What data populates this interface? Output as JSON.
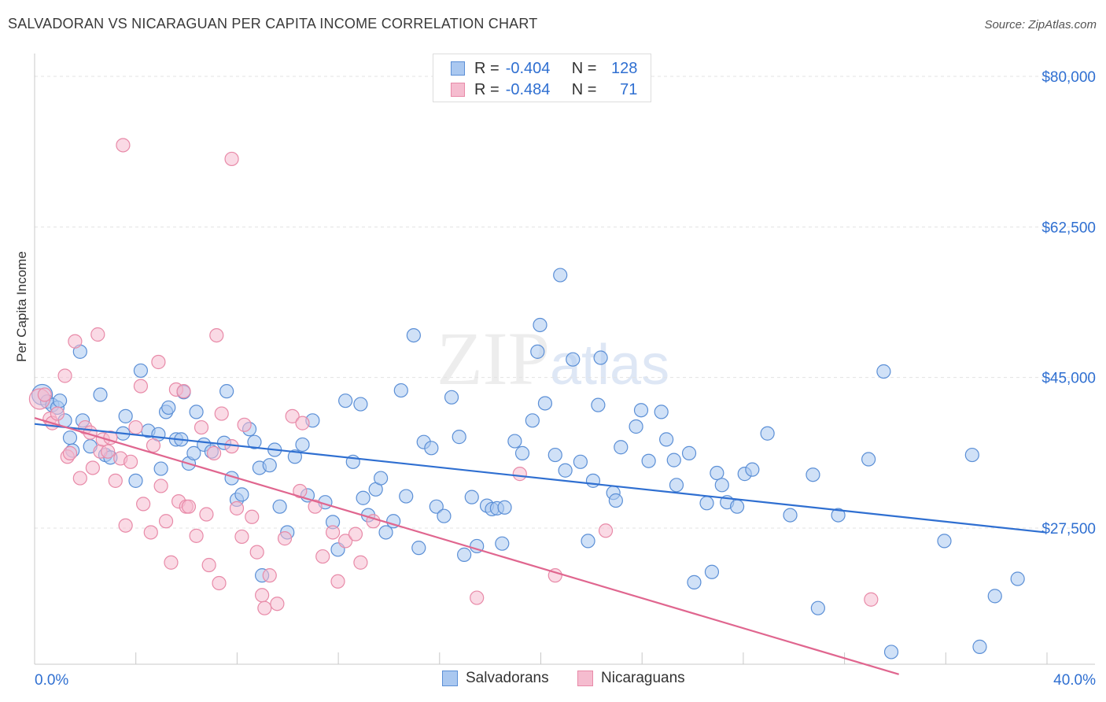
{
  "title": "SALVADORAN VS NICARAGUAN PER CAPITA INCOME CORRELATION CHART",
  "source": "Source: ZipAtlas.com",
  "watermark": {
    "zip": "ZIP",
    "atlas": "atlas"
  },
  "legend": {
    "rows": [
      {
        "r_label": "R =",
        "r_value": "-0.404",
        "n_label": "N =",
        "n_value": "128"
      },
      {
        "r_label": "R =",
        "r_value": "-0.484",
        "n_label": "N =",
        "n_value": "71"
      }
    ]
  },
  "bottom_legend": {
    "salvadorans": "Salvadorans",
    "nicaraguans": "Nicaraguans"
  },
  "colors": {
    "blue_fill": "#aac8f0",
    "blue_stroke": "#5b8fd6",
    "blue_line": "#2f6fd1",
    "pink_fill": "#f5bccf",
    "pink_stroke": "#e88aa8",
    "pink_line": "#e0668f",
    "grid": "#e3e3e3",
    "tick_label": "#2f6fd1"
  },
  "chart_data": {
    "type": "scatter",
    "ylabel": "Per Capita Income",
    "xlim": [
      0,
      40
    ],
    "ylim": [
      10500,
      83000
    ],
    "x_tick_labels": [
      "0.0%",
      "40.0%"
    ],
    "y_ticks": [
      {
        "value": 80000,
        "label": "$80,000"
      },
      {
        "value": 62500,
        "label": "$62,500"
      },
      {
        "value": 45000,
        "label": "$45,000"
      },
      {
        "value": 27500,
        "label": "$27,500"
      }
    ],
    "series": [
      {
        "name": "Salvadorans",
        "trend": [
          [
            0,
            39600
          ],
          [
            40,
            27000
          ]
        ],
        "points": [
          [
            0.3,
            43000
          ],
          [
            0.5,
            42200
          ],
          [
            0.7,
            41800
          ],
          [
            0.9,
            41500
          ],
          [
            1.0,
            42300
          ],
          [
            1.2,
            40000
          ],
          [
            1.4,
            38000
          ],
          [
            1.5,
            36500
          ],
          [
            1.8,
            48000
          ],
          [
            1.9,
            40000
          ],
          [
            2.2,
            37000
          ],
          [
            2.6,
            43000
          ],
          [
            2.8,
            36000
          ],
          [
            3.0,
            35700
          ],
          [
            3.5,
            38500
          ],
          [
            3.6,
            40500
          ],
          [
            4.0,
            33000
          ],
          [
            4.2,
            45800
          ],
          [
            4.5,
            38800
          ],
          [
            4.9,
            38400
          ],
          [
            5.0,
            34400
          ],
          [
            5.2,
            41000
          ],
          [
            5.3,
            41500
          ],
          [
            5.6,
            37800
          ],
          [
            5.8,
            37800
          ],
          [
            5.9,
            43300
          ],
          [
            6.1,
            35000
          ],
          [
            6.3,
            36200
          ],
          [
            6.4,
            41000
          ],
          [
            6.7,
            37200
          ],
          [
            7.0,
            36400
          ],
          [
            7.5,
            37400
          ],
          [
            7.6,
            43400
          ],
          [
            7.8,
            33300
          ],
          [
            8.0,
            30800
          ],
          [
            8.2,
            31400
          ],
          [
            8.5,
            39000
          ],
          [
            8.7,
            37500
          ],
          [
            8.9,
            34500
          ],
          [
            9.0,
            22000
          ],
          [
            9.3,
            34800
          ],
          [
            9.5,
            36600
          ],
          [
            9.7,
            30000
          ],
          [
            10.0,
            27000
          ],
          [
            10.3,
            35800
          ],
          [
            10.6,
            37200
          ],
          [
            10.8,
            31300
          ],
          [
            11.0,
            40000
          ],
          [
            11.5,
            30500
          ],
          [
            11.8,
            28200
          ],
          [
            12.0,
            25000
          ],
          [
            12.3,
            42300
          ],
          [
            12.6,
            35200
          ],
          [
            12.9,
            41900
          ],
          [
            13.0,
            31000
          ],
          [
            13.2,
            29000
          ],
          [
            13.5,
            32000
          ],
          [
            13.7,
            33300
          ],
          [
            13.9,
            27000
          ],
          [
            14.2,
            28300
          ],
          [
            14.5,
            43500
          ],
          [
            14.7,
            31200
          ],
          [
            15.0,
            49900
          ],
          [
            15.2,
            25200
          ],
          [
            15.4,
            37500
          ],
          [
            15.7,
            36800
          ],
          [
            15.9,
            30000
          ],
          [
            16.2,
            28900
          ],
          [
            16.5,
            42700
          ],
          [
            16.8,
            38100
          ],
          [
            17.0,
            24400
          ],
          [
            17.3,
            31100
          ],
          [
            17.5,
            25400
          ],
          [
            17.9,
            30100
          ],
          [
            18.1,
            29700
          ],
          [
            18.3,
            29800
          ],
          [
            18.5,
            25700
          ],
          [
            18.6,
            29900
          ],
          [
            19.0,
            37600
          ],
          [
            19.3,
            36200
          ],
          [
            19.7,
            40000
          ],
          [
            19.9,
            48000
          ],
          [
            20.0,
            51100
          ],
          [
            20.2,
            42000
          ],
          [
            20.6,
            36000
          ],
          [
            20.8,
            56900
          ],
          [
            21.0,
            34200
          ],
          [
            21.3,
            47100
          ],
          [
            21.6,
            35200
          ],
          [
            21.9,
            26000
          ],
          [
            22.1,
            33000
          ],
          [
            22.3,
            41800
          ],
          [
            22.4,
            47300
          ],
          [
            22.9,
            31600
          ],
          [
            23.0,
            30700
          ],
          [
            23.2,
            36900
          ],
          [
            23.8,
            39300
          ],
          [
            24.0,
            41200
          ],
          [
            24.3,
            35300
          ],
          [
            24.8,
            41000
          ],
          [
            25.0,
            37800
          ],
          [
            25.3,
            35400
          ],
          [
            25.4,
            32500
          ],
          [
            25.9,
            36200
          ],
          [
            26.1,
            21200
          ],
          [
            26.6,
            30400
          ],
          [
            26.8,
            22400
          ],
          [
            27.0,
            33900
          ],
          [
            27.2,
            32500
          ],
          [
            27.4,
            30500
          ],
          [
            27.8,
            30000
          ],
          [
            28.1,
            33800
          ],
          [
            28.4,
            34300
          ],
          [
            29.0,
            38500
          ],
          [
            29.9,
            29000
          ],
          [
            30.8,
            33700
          ],
          [
            31.0,
            18200
          ],
          [
            31.8,
            29000
          ],
          [
            33.0,
            35500
          ],
          [
            33.6,
            45700
          ],
          [
            33.9,
            13100
          ],
          [
            36.0,
            26000
          ],
          [
            37.1,
            36000
          ],
          [
            37.4,
            13700
          ],
          [
            38.0,
            19600
          ],
          [
            38.9,
            21600
          ]
        ]
      },
      {
        "name": "Nicaraguans",
        "trend": [
          [
            0,
            40300
          ],
          [
            34.2,
            10500
          ]
        ],
        "points": [
          [
            0.2,
            42500
          ],
          [
            0.4,
            43000
          ],
          [
            0.6,
            40200
          ],
          [
            0.7,
            39700
          ],
          [
            0.9,
            40800
          ],
          [
            1.2,
            45200
          ],
          [
            1.3,
            35800
          ],
          [
            1.4,
            36200
          ],
          [
            1.6,
            49200
          ],
          [
            1.8,
            33300
          ],
          [
            2.0,
            39200
          ],
          [
            2.2,
            38600
          ],
          [
            2.3,
            34500
          ],
          [
            2.5,
            50000
          ],
          [
            2.6,
            36400
          ],
          [
            2.7,
            37800
          ],
          [
            2.9,
            36400
          ],
          [
            3.0,
            38000
          ],
          [
            3.2,
            33000
          ],
          [
            3.4,
            35600
          ],
          [
            3.6,
            27800
          ],
          [
            3.8,
            35200
          ],
          [
            4.0,
            39200
          ],
          [
            4.2,
            44000
          ],
          [
            4.3,
            30300
          ],
          [
            4.6,
            27000
          ],
          [
            4.7,
            37100
          ],
          [
            4.9,
            46800
          ],
          [
            5.0,
            32400
          ],
          [
            5.2,
            28300
          ],
          [
            5.4,
            23500
          ],
          [
            5.6,
            43600
          ],
          [
            5.7,
            30600
          ],
          [
            5.9,
            43400
          ],
          [
            6.0,
            30000
          ],
          [
            6.1,
            30000
          ],
          [
            6.4,
            26600
          ],
          [
            6.6,
            39200
          ],
          [
            6.8,
            29100
          ],
          [
            6.9,
            23200
          ],
          [
            7.1,
            36200
          ],
          [
            7.2,
            49900
          ],
          [
            7.3,
            21100
          ],
          [
            7.4,
            40800
          ],
          [
            7.8,
            37000
          ],
          [
            8.0,
            29800
          ],
          [
            8.2,
            26500
          ],
          [
            8.3,
            39500
          ],
          [
            8.6,
            28800
          ],
          [
            8.8,
            24700
          ],
          [
            9.0,
            19700
          ],
          [
            9.1,
            18200
          ],
          [
            9.3,
            22000
          ],
          [
            9.6,
            18700
          ],
          [
            9.9,
            26300
          ],
          [
            10.2,
            40500
          ],
          [
            10.5,
            31800
          ],
          [
            10.6,
            39700
          ],
          [
            11.1,
            30000
          ],
          [
            11.4,
            24200
          ],
          [
            11.8,
            27000
          ],
          [
            12.0,
            21300
          ],
          [
            12.3,
            26000
          ],
          [
            12.7,
            26800
          ],
          [
            12.9,
            23500
          ],
          [
            13.4,
            28300
          ],
          [
            17.5,
            19400
          ],
          [
            19.2,
            33800
          ],
          [
            20.6,
            22000
          ],
          [
            22.6,
            27200
          ],
          [
            33.1,
            19200
          ],
          [
            3.5,
            72000
          ],
          [
            7.8,
            70400
          ]
        ]
      }
    ]
  }
}
